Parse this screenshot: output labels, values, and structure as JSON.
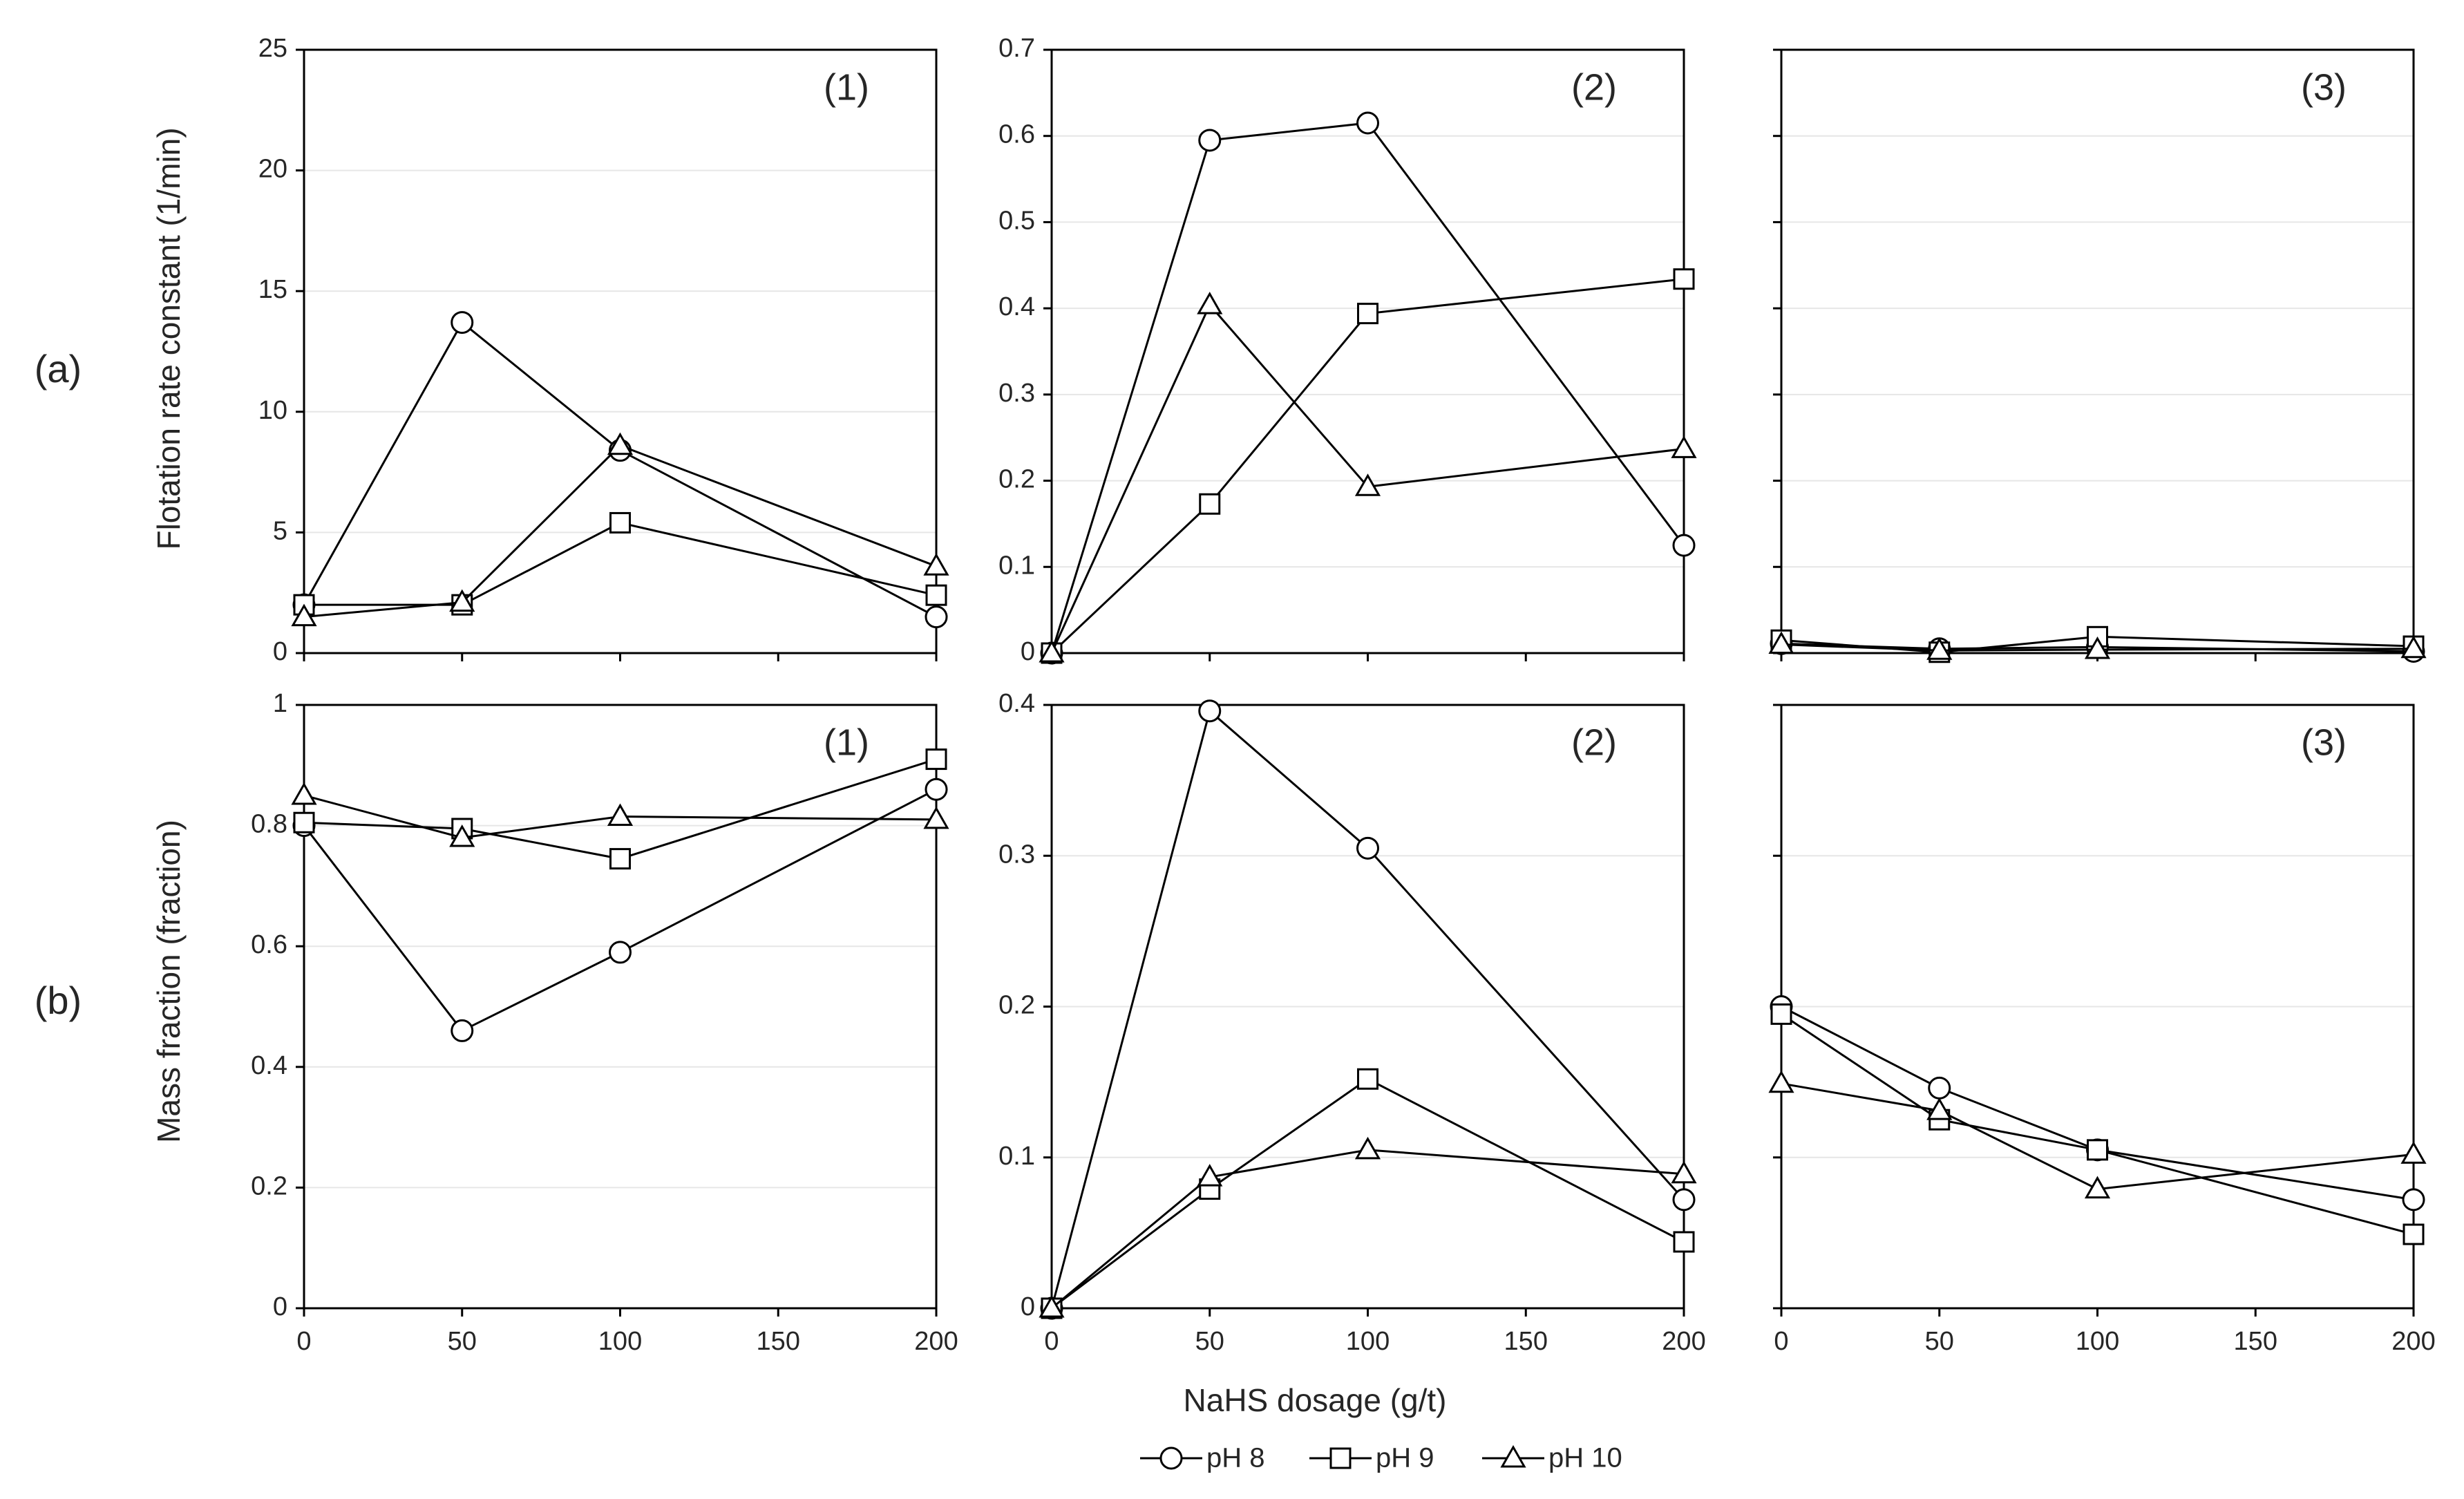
{
  "figure": {
    "xlabel": "NaHS dosage (g/t)",
    "row_labels": [
      "(a)",
      "(b)"
    ],
    "row_ylabels": [
      "Flotation rate constant (1/min)",
      "Mass fraction (fraction)"
    ],
    "legend": [
      {
        "name": "pH 8",
        "marker": "circle-marker"
      },
      {
        "name": "pH 9",
        "marker": "square-marker"
      },
      {
        "name": "pH 10",
        "marker": "triangle-marker"
      }
    ],
    "colors": {
      "line": "#000000",
      "frame": "#000000",
      "grid": "#e6e6e6",
      "tick_text": "#595959",
      "text": "#262626"
    }
  },
  "chart_data": [
    {
      "type": "line",
      "row": "a",
      "panel": "(1)",
      "ylabel": "Flotation rate constant (1/min)",
      "xlabel": "",
      "x": [
        0,
        50,
        100,
        200
      ],
      "xticks": [
        0,
        50,
        100,
        150,
        200
      ],
      "xlim": [
        0,
        200
      ],
      "ylim": [
        0,
        25
      ],
      "yticks": [
        0,
        5,
        10,
        15,
        20,
        25
      ],
      "tick_labels_y": true,
      "tick_labels_x": false,
      "series": [
        {
          "name": "pH 8",
          "values": [
            2.0,
            13.7,
            8.4,
            1.5
          ]
        },
        {
          "name": "pH 9",
          "values": [
            2.0,
            2.0,
            5.4,
            2.4
          ]
        },
        {
          "name": "pH 10",
          "values": [
            1.5,
            2.1,
            8.6,
            3.6
          ]
        }
      ]
    },
    {
      "type": "line",
      "row": "a",
      "panel": "(2)",
      "ylabel": "",
      "xlabel": "",
      "x": [
        0,
        50,
        100,
        200
      ],
      "xticks": [
        0,
        50,
        100,
        150,
        200
      ],
      "xlim": [
        0,
        200
      ],
      "ylim": [
        0,
        0.7
      ],
      "yticks": [
        0,
        0.1,
        0.2,
        0.3,
        0.4,
        0.5,
        0.6,
        0.7
      ],
      "tick_labels_y": true,
      "tick_labels_x": false,
      "series": [
        {
          "name": "pH 8",
          "values": [
            0.0,
            0.595,
            0.615,
            0.125
          ]
        },
        {
          "name": "pH 9",
          "values": [
            0.0,
            0.173,
            0.394,
            0.434
          ]
        },
        {
          "name": "pH 10",
          "values": [
            0.0,
            0.404,
            0.193,
            0.237
          ]
        }
      ]
    },
    {
      "type": "line",
      "row": "a",
      "panel": "(3)",
      "ylabel": "",
      "xlabel": "",
      "x": [
        0,
        50,
        100,
        200
      ],
      "xticks": [
        0,
        50,
        100,
        150,
        200
      ],
      "xlim": [
        0,
        200
      ],
      "ylim": [
        0,
        0.7
      ],
      "yticks": [
        0,
        0.1,
        0.2,
        0.3,
        0.4,
        0.5,
        0.6,
        0.7
      ],
      "tick_labels_y": false,
      "tick_labels_x": false,
      "series": [
        {
          "name": "pH 8",
          "values": [
            0.011,
            0.005,
            0.007,
            0.002
          ]
        },
        {
          "name": "pH 9",
          "values": [
            0.015,
            0.001,
            0.019,
            0.008
          ]
        },
        {
          "name": "pH 10",
          "values": [
            0.01,
            0.003,
            0.004,
            0.005
          ]
        }
      ]
    },
    {
      "type": "line",
      "row": "b",
      "panel": "(1)",
      "ylabel": "Mass fraction (fraction)",
      "xlabel": "",
      "x": [
        0,
        50,
        100,
        200
      ],
      "xticks": [
        0,
        50,
        100,
        150,
        200
      ],
      "xlim": [
        0,
        200
      ],
      "ylim": [
        0,
        1
      ],
      "yticks": [
        0,
        0.2,
        0.4,
        0.6,
        0.8,
        1
      ],
      "tick_labels_y": true,
      "tick_labels_x": true,
      "series": [
        {
          "name": "pH 8",
          "values": [
            0.8,
            0.46,
            0.59,
            0.86
          ]
        },
        {
          "name": "pH 9",
          "values": [
            0.805,
            0.795,
            0.745,
            0.91
          ]
        },
        {
          "name": "pH 10",
          "values": [
            0.85,
            0.78,
            0.815,
            0.81
          ]
        }
      ]
    },
    {
      "type": "line",
      "row": "b",
      "panel": "(2)",
      "ylabel": "",
      "xlabel": "NaHS dosage (g/t)",
      "x": [
        0,
        50,
        100,
        200
      ],
      "xticks": [
        0,
        50,
        100,
        150,
        200
      ],
      "xlim": [
        0,
        200
      ],
      "ylim": [
        0,
        0.4
      ],
      "yticks": [
        0,
        0.1,
        0.2,
        0.3,
        0.4
      ],
      "tick_labels_y": true,
      "tick_labels_x": true,
      "series": [
        {
          "name": "pH 8",
          "values": [
            0.0,
            0.396,
            0.305,
            0.072
          ]
        },
        {
          "name": "pH 9",
          "values": [
            0.0,
            0.079,
            0.152,
            0.044
          ]
        },
        {
          "name": "pH 10",
          "values": [
            0.0,
            0.087,
            0.105,
            0.089
          ]
        }
      ]
    },
    {
      "type": "line",
      "row": "b",
      "panel": "(3)",
      "ylabel": "",
      "xlabel": "",
      "x": [
        0,
        50,
        100,
        200
      ],
      "xticks": [
        0,
        50,
        100,
        150,
        200
      ],
      "xlim": [
        0,
        200
      ],
      "ylim": [
        0,
        0.4
      ],
      "yticks": [
        0,
        0.1,
        0.2,
        0.3,
        0.4
      ],
      "tick_labels_y": false,
      "tick_labels_x": true,
      "series": [
        {
          "name": "pH 8",
          "values": [
            0.2,
            0.146,
            0.105,
            0.072
          ]
        },
        {
          "name": "pH 9",
          "values": [
            0.195,
            0.125,
            0.105,
            0.049
          ]
        },
        {
          "name": "pH 10",
          "values": [
            0.149,
            0.131,
            0.079,
            0.102
          ]
        }
      ]
    }
  ]
}
